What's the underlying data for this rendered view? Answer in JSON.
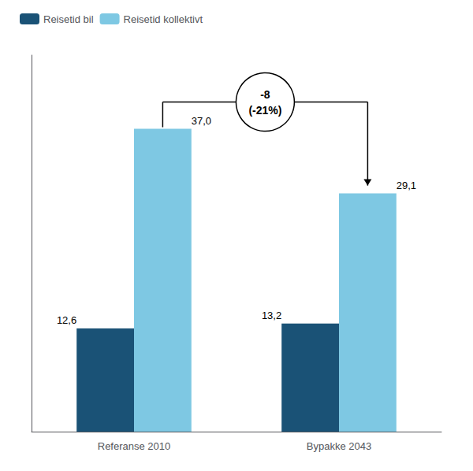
{
  "chart_data": {
    "type": "bar",
    "categories": [
      "Referanse 2010",
      "Bypakke 2043"
    ],
    "series": [
      {
        "name": "Reisetid bil",
        "color": "#1a5276",
        "values": [
          12.6,
          13.2
        ],
        "value_labels": [
          "12,6",
          "13,2"
        ]
      },
      {
        "name": "Reisetid kollektivt",
        "color": "#7ec8e3",
        "values": [
          37.0,
          29.1
        ],
        "value_labels": [
          "37,0",
          "29,1"
        ]
      }
    ],
    "ylim": [
      0,
      46
    ],
    "yticks": [],
    "grid": false,
    "legend": "upper left",
    "data_labels": true,
    "tick_labels": "x",
    "annotations": [
      "-8",
      "(-21%)"
    ]
  }
}
